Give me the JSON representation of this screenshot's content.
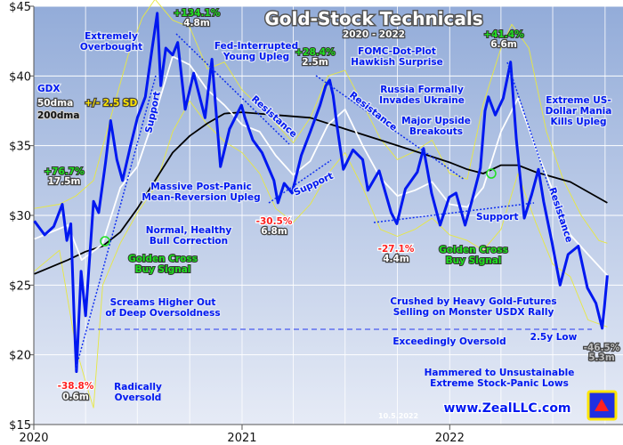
{
  "chart_data": {
    "type": "line",
    "title": "Gold-Stock Technicals",
    "subtitle": "2020 - 2022",
    "ylim": [
      15,
      45
    ],
    "xlim": [
      "2020-01-01",
      "2022-10-31"
    ],
    "yticks": [
      "$15",
      "$20",
      "$25",
      "$30",
      "$35",
      "$40",
      "$45"
    ],
    "yvalues": [
      15,
      20,
      25,
      30,
      35,
      40,
      45
    ],
    "xticks": [
      {
        "label": "2020",
        "date": "2020-01-01"
      },
      {
        "label": "2021",
        "date": "2021-01-01"
      },
      {
        "label": "2022",
        "date": "2022-01-01"
      }
    ],
    "grid": true,
    "legend": {
      "gdx": "GDX",
      "dma50": "50dma",
      "sd": "+/- 2.5 SD",
      "dma200": "200dma"
    },
    "colors": {
      "gdx": "#0018f0",
      "dma50": "#ffffff",
      "dma200": "#000000",
      "bands": "#e8e840",
      "bg_top": "#93acd9",
      "bg_bottom": "#e6ebf6"
    },
    "series": [
      {
        "name": "GDX",
        "values": [
          [
            "2020-01-02",
            29.6
          ],
          [
            "2020-01-20",
            28.6
          ],
          [
            "2020-02-05",
            29.2
          ],
          [
            "2020-02-20",
            30.8
          ],
          [
            "2020-02-28",
            28.2
          ],
          [
            "2020-03-06",
            29.4
          ],
          [
            "2020-03-12",
            22.5
          ],
          [
            "2020-03-16",
            18.8
          ],
          [
            "2020-03-24",
            26.0
          ],
          [
            "2020-04-01",
            22.8
          ],
          [
            "2020-04-09",
            27.5
          ],
          [
            "2020-04-15",
            31.0
          ],
          [
            "2020-04-24",
            30.2
          ],
          [
            "2020-05-06",
            33.8
          ],
          [
            "2020-05-15",
            36.8
          ],
          [
            "2020-05-26",
            34.0
          ],
          [
            "2020-06-05",
            32.5
          ],
          [
            "2020-06-19",
            35.0
          ],
          [
            "2020-07-01",
            37.0
          ],
          [
            "2020-07-15",
            38.5
          ],
          [
            "2020-07-27",
            42.0
          ],
          [
            "2020-08-05",
            44.5
          ],
          [
            "2020-08-11",
            39.3
          ],
          [
            "2020-08-20",
            42.0
          ],
          [
            "2020-09-01",
            41.5
          ],
          [
            "2020-09-10",
            42.4
          ],
          [
            "2020-09-23",
            37.6
          ],
          [
            "2020-10-08",
            40.2
          ],
          [
            "2020-10-28",
            37.0
          ],
          [
            "2020-11-09",
            41.2
          ],
          [
            "2020-11-24",
            33.5
          ],
          [
            "2020-12-10",
            36.2
          ],
          [
            "2020-12-31",
            37.9
          ],
          [
            "2021-01-06",
            37.0
          ],
          [
            "2021-01-20",
            35.4
          ],
          [
            "2021-02-05",
            34.5
          ],
          [
            "2021-02-26",
            32.5
          ],
          [
            "2021-03-05",
            30.9
          ],
          [
            "2021-03-16",
            32.3
          ],
          [
            "2021-03-30",
            31.6
          ],
          [
            "2021-04-15",
            34.3
          ],
          [
            "2021-05-01",
            36.0
          ],
          [
            "2021-05-18",
            37.9
          ],
          [
            "2021-05-28",
            39.3
          ],
          [
            "2021-06-04",
            39.7
          ],
          [
            "2021-06-10",
            38.6
          ],
          [
            "2021-06-17",
            36.4
          ],
          [
            "2021-06-28",
            33.3
          ],
          [
            "2021-07-15",
            34.7
          ],
          [
            "2021-08-01",
            34.0
          ],
          [
            "2021-08-10",
            31.8
          ],
          [
            "2021-08-30",
            33.2
          ],
          [
            "2021-09-20",
            30.2
          ],
          [
            "2021-09-30",
            29.4
          ],
          [
            "2021-10-15",
            31.9
          ],
          [
            "2021-11-05",
            33.1
          ],
          [
            "2021-11-16",
            34.8
          ],
          [
            "2021-11-30",
            31.6
          ],
          [
            "2021-12-15",
            29.3
          ],
          [
            "2021-12-31",
            31.3
          ],
          [
            "2022-01-12",
            31.6
          ],
          [
            "2022-01-28",
            29.3
          ],
          [
            "2022-02-10",
            31.2
          ],
          [
            "2022-02-24",
            33.4
          ],
          [
            "2022-03-04",
            37.5
          ],
          [
            "2022-03-10",
            38.5
          ],
          [
            "2022-03-22",
            37.2
          ],
          [
            "2022-04-05",
            38.4
          ],
          [
            "2022-04-18",
            41.0
          ],
          [
            "2022-04-28",
            35.5
          ],
          [
            "2022-05-12",
            29.8
          ],
          [
            "2022-05-25",
            31.5
          ],
          [
            "2022-06-06",
            33.3
          ],
          [
            "2022-06-15",
            31.0
          ],
          [
            "2022-06-30",
            28.0
          ],
          [
            "2022-07-14",
            25.0
          ],
          [
            "2022-07-28",
            27.2
          ],
          [
            "2022-08-15",
            27.8
          ],
          [
            "2022-08-31",
            24.8
          ],
          [
            "2022-09-15",
            23.7
          ],
          [
            "2022-09-26",
            21.9
          ],
          [
            "2022-09-30",
            23.5
          ],
          [
            "2022-10-05",
            25.7
          ]
        ]
      },
      {
        "name": "50dma",
        "values": [
          [
            "2020-01-02",
            28.3
          ],
          [
            "2020-03-01",
            29.3
          ],
          [
            "2020-03-25",
            26.8
          ],
          [
            "2020-04-30",
            27.9
          ],
          [
            "2020-06-01",
            32.0
          ],
          [
            "2020-07-01",
            33.5
          ],
          [
            "2020-08-01",
            37.2
          ],
          [
            "2020-09-01",
            41.4
          ],
          [
            "2020-10-01",
            40.8
          ],
          [
            "2020-11-01",
            39.0
          ],
          [
            "2020-12-01",
            37.9
          ],
          [
            "2021-01-01",
            36.5
          ],
          [
            "2021-02-01",
            36.0
          ],
          [
            "2021-03-01",
            34.3
          ],
          [
            "2021-04-01",
            32.9
          ],
          [
            "2021-05-01",
            33.9
          ],
          [
            "2021-06-01",
            36.5
          ],
          [
            "2021-07-01",
            37.6
          ],
          [
            "2021-08-01",
            35.0
          ],
          [
            "2021-09-01",
            32.7
          ],
          [
            "2021-10-01",
            31.4
          ],
          [
            "2021-11-01",
            31.8
          ],
          [
            "2021-12-01",
            32.4
          ],
          [
            "2022-01-01",
            30.8
          ],
          [
            "2022-02-01",
            30.6
          ],
          [
            "2022-03-01",
            32.0
          ],
          [
            "2022-04-01",
            36.0
          ],
          [
            "2022-05-01",
            38.4
          ],
          [
            "2022-06-01",
            34.8
          ],
          [
            "2022-07-01",
            31.8
          ],
          [
            "2022-08-01",
            28.6
          ],
          [
            "2022-09-01",
            27.2
          ],
          [
            "2022-10-05",
            25.7
          ]
        ]
      },
      {
        "name": "200dma",
        "values": [
          [
            "2020-01-02",
            25.8
          ],
          [
            "2020-03-01",
            26.8
          ],
          [
            "2020-04-01",
            27.4
          ],
          [
            "2020-05-01",
            27.8
          ],
          [
            "2020-06-01",
            28.8
          ],
          [
            "2020-07-01",
            30.5
          ],
          [
            "2020-08-01",
            32.5
          ],
          [
            "2020-09-01",
            34.5
          ],
          [
            "2020-10-01",
            35.7
          ],
          [
            "2020-11-01",
            36.6
          ],
          [
            "2020-12-01",
            37.3
          ],
          [
            "2021-01-01",
            37.4
          ],
          [
            "2021-03-01",
            37.2
          ],
          [
            "2021-05-01",
            37.0
          ],
          [
            "2021-07-01",
            36.2
          ],
          [
            "2021-09-01",
            35.4
          ],
          [
            "2021-11-01",
            34.6
          ],
          [
            "2022-01-01",
            33.8
          ],
          [
            "2022-02-01",
            33.3
          ],
          [
            "2022-03-01",
            33.0
          ],
          [
            "2022-04-01",
            33.6
          ],
          [
            "2022-05-01",
            33.6
          ],
          [
            "2022-06-01",
            33.1
          ],
          [
            "2022-08-01",
            32.4
          ],
          [
            "2022-10-05",
            30.9
          ]
        ]
      },
      {
        "name": "upper band",
        "values": [
          [
            "2020-01-02",
            30.5
          ],
          [
            "2020-02-15",
            30.8
          ],
          [
            "2020-03-15",
            31.4
          ],
          [
            "2020-04-15",
            32.5
          ],
          [
            "2020-05-15",
            37.0
          ],
          [
            "2020-06-15",
            41.5
          ],
          [
            "2020-07-10",
            44.2
          ],
          [
            "2020-08-01",
            45.5
          ],
          [
            "2020-09-01",
            44.0
          ],
          [
            "2020-10-01",
            43.5
          ],
          [
            "2020-11-01",
            40.5
          ],
          [
            "2020-12-01",
            41.0
          ],
          [
            "2021-01-01",
            39.0
          ],
          [
            "2021-02-01",
            37.8
          ],
          [
            "2021-03-01",
            36.6
          ],
          [
            "2021-04-01",
            35.2
          ],
          [
            "2021-05-01",
            37.0
          ],
          [
            "2021-06-01",
            40.0
          ],
          [
            "2021-07-01",
            40.4
          ],
          [
            "2021-08-01",
            38.0
          ],
          [
            "2021-09-01",
            35.5
          ],
          [
            "2021-10-01",
            34.0
          ],
          [
            "2021-11-01",
            34.6
          ],
          [
            "2021-12-01",
            35.4
          ],
          [
            "2022-01-01",
            33.0
          ],
          [
            "2022-02-01",
            32.6
          ],
          [
            "2022-03-01",
            38.0
          ],
          [
            "2022-04-01",
            42.0
          ],
          [
            "2022-04-20",
            43.7
          ],
          [
            "2022-05-20",
            42.0
          ],
          [
            "2022-06-20",
            36.0
          ],
          [
            "2022-07-20",
            32.5
          ],
          [
            "2022-08-20",
            30.0
          ],
          [
            "2022-09-20",
            28.2
          ],
          [
            "2022-10-05",
            28.0
          ]
        ]
      },
      {
        "name": "lower band",
        "values": [
          [
            "2020-01-02",
            26.0
          ],
          [
            "2020-02-15",
            27.5
          ],
          [
            "2020-03-15",
            20.5
          ],
          [
            "2020-04-05",
            17.5
          ],
          [
            "2020-04-15",
            16.2
          ],
          [
            "2020-05-01",
            25.0
          ],
          [
            "2020-06-01",
            28.0
          ],
          [
            "2020-07-01",
            30.2
          ],
          [
            "2020-08-01",
            32.0
          ],
          [
            "2020-09-01",
            36.0
          ],
          [
            "2020-10-01",
            38.2
          ],
          [
            "2020-11-01",
            36.5
          ],
          [
            "2020-12-01",
            35.3
          ],
          [
            "2021-01-01",
            34.5
          ],
          [
            "2021-02-01",
            33.0
          ],
          [
            "2021-03-01",
            30.5
          ],
          [
            "2021-04-01",
            29.5
          ],
          [
            "2021-05-01",
            30.8
          ],
          [
            "2021-06-01",
            33.0
          ],
          [
            "2021-07-01",
            34.5
          ],
          [
            "2021-08-01",
            32.0
          ],
          [
            "2021-09-01",
            29.0
          ],
          [
            "2021-10-01",
            28.5
          ],
          [
            "2021-11-01",
            29.0
          ],
          [
            "2021-12-01",
            29.8
          ],
          [
            "2022-01-01",
            28.6
          ],
          [
            "2022-02-01",
            28.2
          ],
          [
            "2022-03-01",
            27.5
          ],
          [
            "2022-04-01",
            29.0
          ],
          [
            "2022-05-01",
            33.0
          ],
          [
            "2022-06-01",
            29.5
          ],
          [
            "2022-07-01",
            26.5
          ],
          [
            "2022-08-01",
            25.6
          ],
          [
            "2022-09-01",
            22.5
          ],
          [
            "2022-10-05",
            22.0
          ]
        ]
      }
    ],
    "annotations": {
      "extremely_overbought": [
        "Extremely",
        "Overbought"
      ],
      "gain_2020": "+134.1%",
      "gain_2020_dur": "4.8m",
      "fed_interrupted": [
        "Fed-Interrupted",
        "Young Upleg"
      ],
      "gain_2021": "+28.4%",
      "gain_2021_dur": "2.5m",
      "fomc": [
        "FOMC-Dot-Plot",
        "Hawkish Surprise"
      ],
      "gain_2022": "+41.4%",
      "gain_2022_dur": "6.6m",
      "russia": [
        "Russia Formally",
        "Invades Ukraine"
      ],
      "breakouts": [
        "Major Upside",
        "Breakouts"
      ],
      "usd_mania": [
        "Extreme US-",
        "Dollar Mania",
        "Kills Upleg"
      ],
      "gain_early": "+76.7%",
      "gain_early_dur": "17.5m",
      "support": "Support",
      "resistance": "Resistance",
      "massive": [
        "Massive Post-Panic",
        "Mean-Reversion Upleg"
      ],
      "normal": [
        "Normal, Healthy",
        "Bull Correction"
      ],
      "loss_2021": "-30.5%",
      "loss_2021_dur": "6.8m",
      "golden_cross": [
        "Golden Cross",
        "Buy Signal"
      ],
      "loss_2022": "-27.1%",
      "loss_2022_dur": "4.4m",
      "screams": [
        "Screams Higher Out",
        "of Deep Oversoldness"
      ],
      "crushed": [
        "Crushed by Heavy Gold-Futures",
        "Selling on Monster USDX Rally"
      ],
      "exceedingly": "Exceedingly Oversold",
      "low_25y": "2.5y Low",
      "loss_now": "-46.5%",
      "loss_now_dur": "5.3m",
      "hammered": [
        "Hammered to Unsustainable",
        "Extreme Stock-Panic Lows"
      ],
      "loss_2020": "-38.8%",
      "loss_2020_dur": "0.6m",
      "radically": [
        "Radically",
        "Oversold"
      ]
    },
    "date_stamp": "10.5.2022",
    "website": "www.ZealLLC.com"
  }
}
